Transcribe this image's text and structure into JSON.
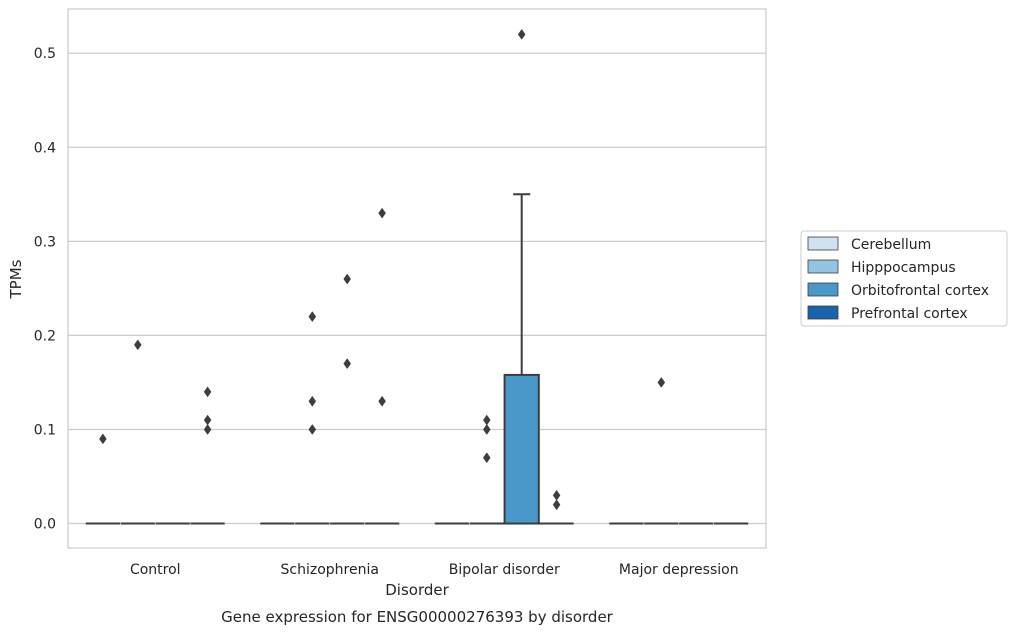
{
  "chart_data": {
    "type": "box",
    "caption": "Gene expression for ENSG00000276393 by disorder",
    "xlabel": "Disorder",
    "ylabel": "TPMs",
    "ylim": [
      -0.026,
      0.547
    ],
    "yticks": [
      0.0,
      0.1,
      0.2,
      0.3,
      0.4,
      0.5
    ],
    "ytick_labels": [
      "0.0",
      "0.1",
      "0.2",
      "0.3",
      "0.4",
      "0.5"
    ],
    "grid": true,
    "legend_position": "right",
    "categories": [
      "Control",
      "Schizophrenia",
      "Bipolar disorder",
      "Major depression"
    ],
    "series": [
      {
        "name": "Cerebellum",
        "color": "#d0e1f2",
        "boxes": [
          {
            "q1": 0,
            "median": 0,
            "q3": 0,
            "whislo": 0,
            "whishi": 0,
            "fliers": [
              0.09
            ]
          },
          {
            "q1": 0,
            "median": 0,
            "q3": 0,
            "whislo": 0,
            "whishi": 0,
            "fliers": []
          },
          {
            "q1": 0,
            "median": 0,
            "q3": 0,
            "whislo": 0,
            "whishi": 0,
            "fliers": []
          },
          {
            "q1": 0,
            "median": 0,
            "q3": 0,
            "whislo": 0,
            "whishi": 0,
            "fliers": []
          }
        ]
      },
      {
        "name": "Hipppocampus",
        "color": "#94c4df",
        "boxes": [
          {
            "q1": 0,
            "median": 0,
            "q3": 0,
            "whislo": 0,
            "whishi": 0,
            "fliers": [
              0.19
            ]
          },
          {
            "q1": 0,
            "median": 0,
            "q3": 0,
            "whislo": 0,
            "whishi": 0,
            "fliers": [
              0.1,
              0.13,
              0.22
            ]
          },
          {
            "q1": 0,
            "median": 0,
            "q3": 0,
            "whislo": 0,
            "whishi": 0,
            "fliers": [
              0.07,
              0.1,
              0.11
            ]
          },
          {
            "q1": 0,
            "median": 0,
            "q3": 0,
            "whislo": 0,
            "whishi": 0,
            "fliers": [
              0.15
            ]
          }
        ]
      },
      {
        "name": "Orbitofrontal cortex",
        "color": "#4a98c9",
        "boxes": [
          {
            "q1": 0,
            "median": 0,
            "q3": 0,
            "whislo": 0,
            "whishi": 0,
            "fliers": []
          },
          {
            "q1": 0,
            "median": 0,
            "q3": 0,
            "whislo": 0,
            "whishi": 0,
            "fliers": [
              0.17,
              0.26
            ]
          },
          {
            "q1": 0,
            "median": 0,
            "q3": 0.158,
            "whislo": 0,
            "whishi": 0.35,
            "fliers": [
              0.52
            ]
          },
          {
            "q1": 0,
            "median": 0,
            "q3": 0,
            "whislo": 0,
            "whishi": 0,
            "fliers": []
          }
        ]
      },
      {
        "name": "Prefrontal cortex",
        "color": "#1764ab",
        "boxes": [
          {
            "q1": 0,
            "median": 0,
            "q3": 0,
            "whislo": 0,
            "whishi": 0,
            "fliers": [
              0.1,
              0.11,
              0.14
            ]
          },
          {
            "q1": 0,
            "median": 0,
            "q3": 0,
            "whislo": 0,
            "whishi": 0,
            "fliers": [
              0.13,
              0.33
            ]
          },
          {
            "q1": 0,
            "median": 0,
            "q3": 0,
            "whislo": 0,
            "whishi": 0,
            "fliers": [
              0.02,
              0.03
            ]
          },
          {
            "q1": 0,
            "median": 0,
            "q3": 0,
            "whislo": 0,
            "whishi": 0,
            "fliers": []
          }
        ]
      }
    ]
  }
}
